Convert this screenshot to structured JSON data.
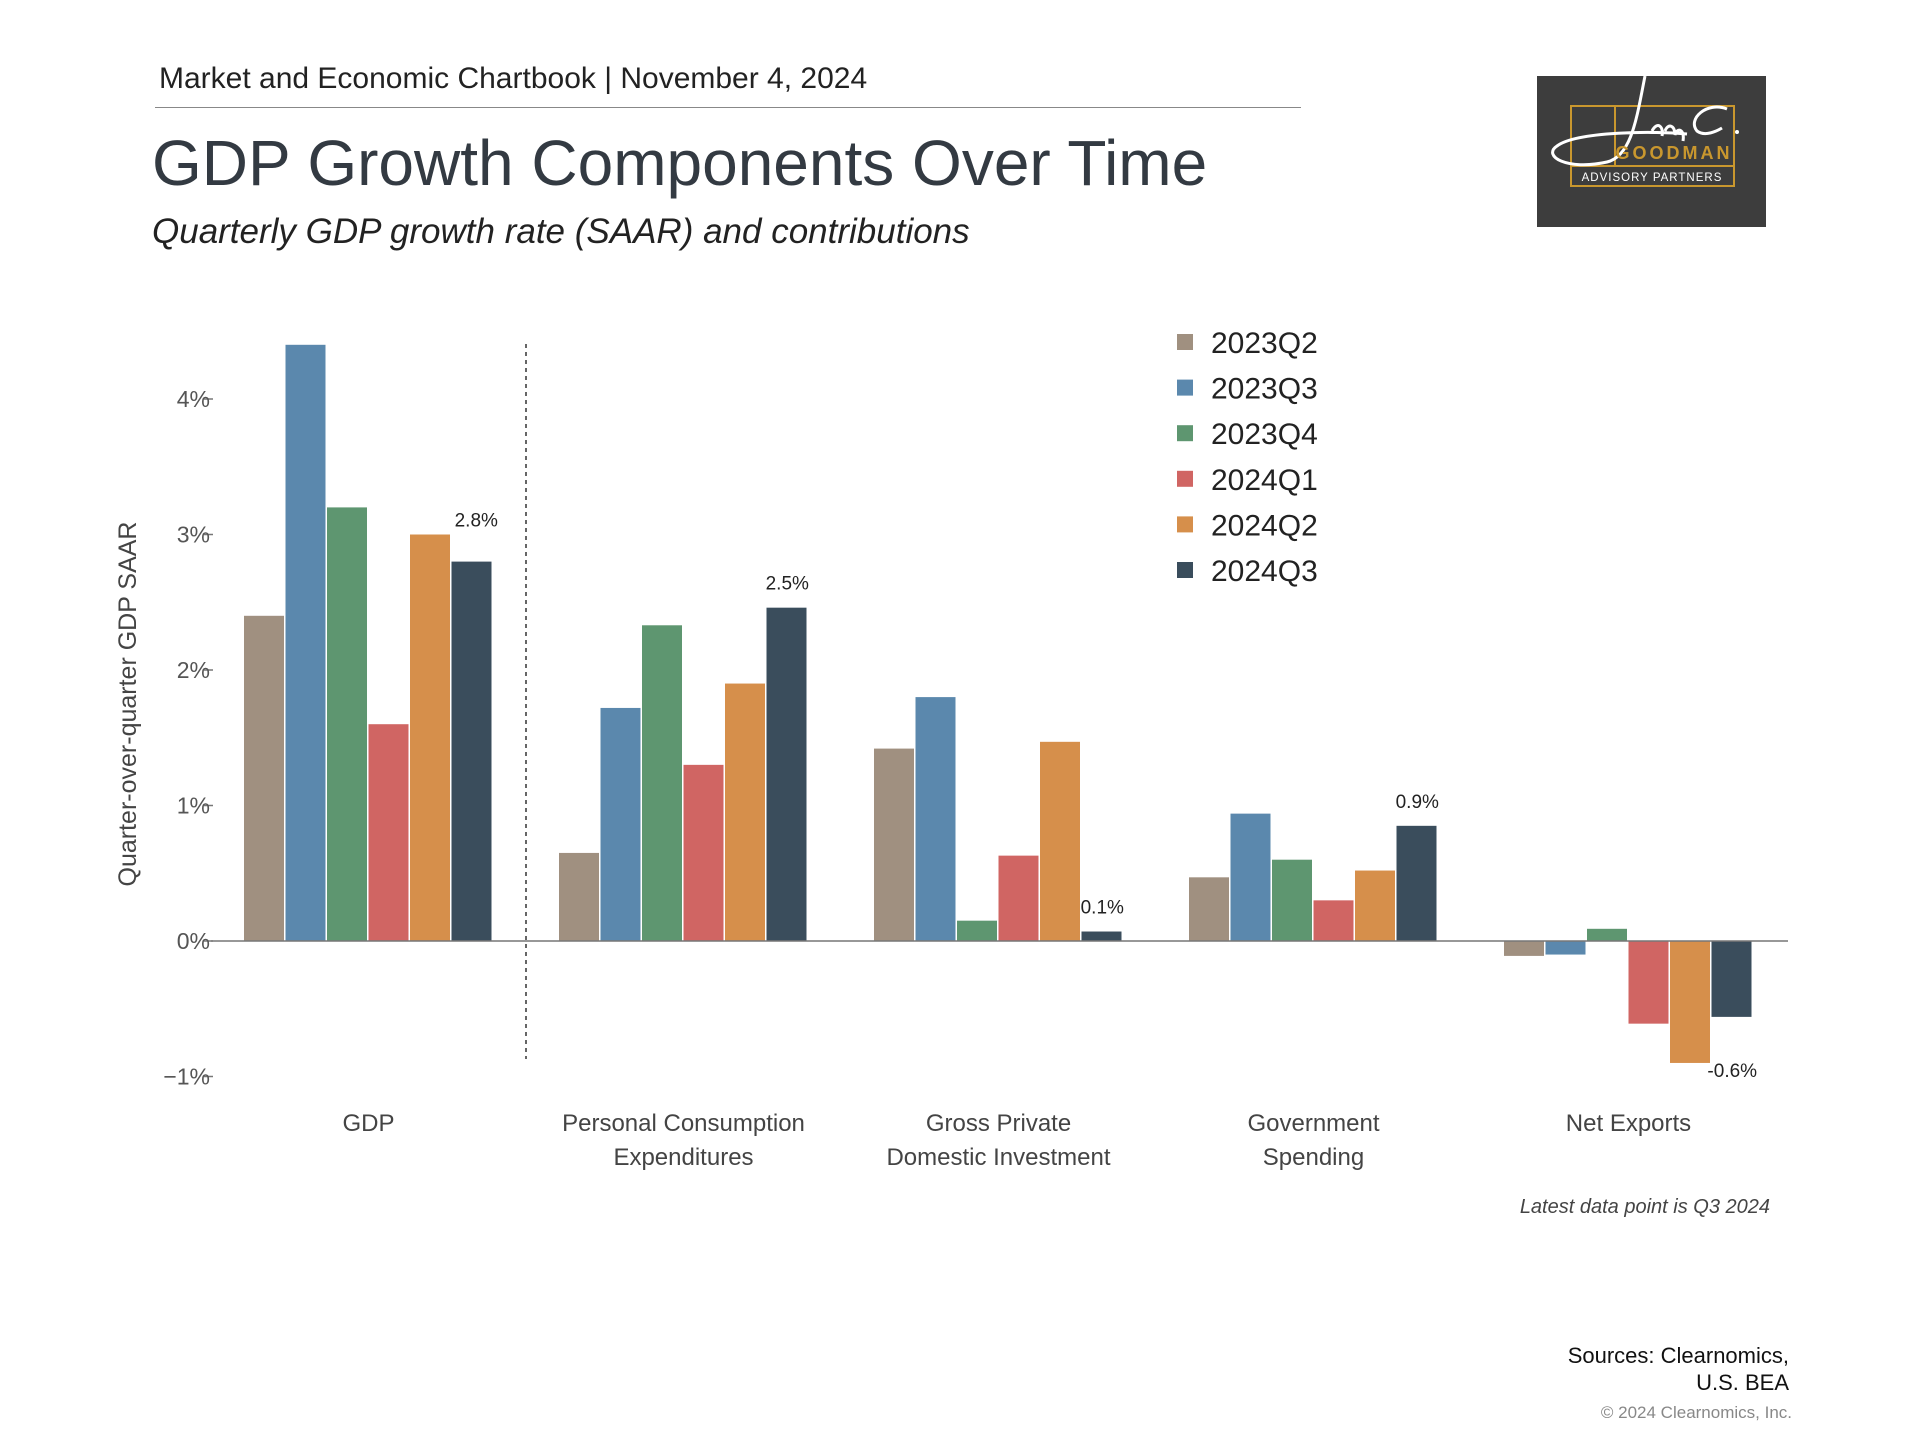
{
  "header": {
    "chartbook": "Market and Economic Chartbook | November 4, 2024",
    "title": "GDP Growth Components Over Time",
    "subtitle": "Quarterly GDP growth rate (SAAR) and contributions"
  },
  "logo": {
    "script": "Jon C.",
    "name": "GOODMAN",
    "tagline": "ADVISORY PARTNERS",
    "colors": {
      "background": "#3d3d3d",
      "gold": "#c9972e"
    }
  },
  "chart_data": {
    "type": "bar",
    "ylabel": "Quarter-over-quarter GDP SAAR",
    "ylim": [
      -1,
      4.4
    ],
    "yticks": [
      -1,
      0,
      1,
      2,
      3,
      4
    ],
    "ytick_labels": [
      "−1%",
      "0%",
      "1%",
      "2%",
      "3%",
      "4%"
    ],
    "grid": false,
    "legend_placement": "top-center",
    "categories": [
      [
        "GDP"
      ],
      [
        "Personal Consumption",
        "Expenditures"
      ],
      [
        "Gross Private",
        "Domestic Investment"
      ],
      [
        "Government",
        "Spending"
      ],
      [
        "Net Exports"
      ]
    ],
    "series": [
      {
        "name": "2023Q2",
        "color": "#a09080",
        "values": [
          2.4,
          0.65,
          1.42,
          0.47,
          -0.11
        ]
      },
      {
        "name": "2023Q3",
        "color": "#5b88ad",
        "values": [
          4.4,
          1.72,
          1.8,
          0.94,
          -0.1
        ]
      },
      {
        "name": "2023Q4",
        "color": "#5e9670",
        "values": [
          3.2,
          2.33,
          0.15,
          0.6,
          0.09
        ]
      },
      {
        "name": "2024Q1",
        "color": "#d06563",
        "values": [
          1.6,
          1.3,
          0.63,
          0.3,
          -0.61
        ]
      },
      {
        "name": "2024Q2",
        "color": "#d68f4b",
        "values": [
          3.0,
          1.9,
          1.47,
          0.52,
          -0.9
        ]
      },
      {
        "name": "2024Q3",
        "color": "#3a4d5c",
        "values": [
          2.8,
          2.46,
          0.07,
          0.85,
          -0.56
        ]
      }
    ],
    "data_labels": [
      "2.8%",
      "2.5%",
      "0.1%",
      "0.9%",
      "-0.6%"
    ],
    "separator_after_category": 0
  },
  "footer": {
    "note": "Latest data point is Q3 2024",
    "sources_line1": "Sources: Clearnomics,",
    "sources_line2": "U.S. BEA",
    "copyright": "© 2024 Clearnomics, Inc."
  }
}
